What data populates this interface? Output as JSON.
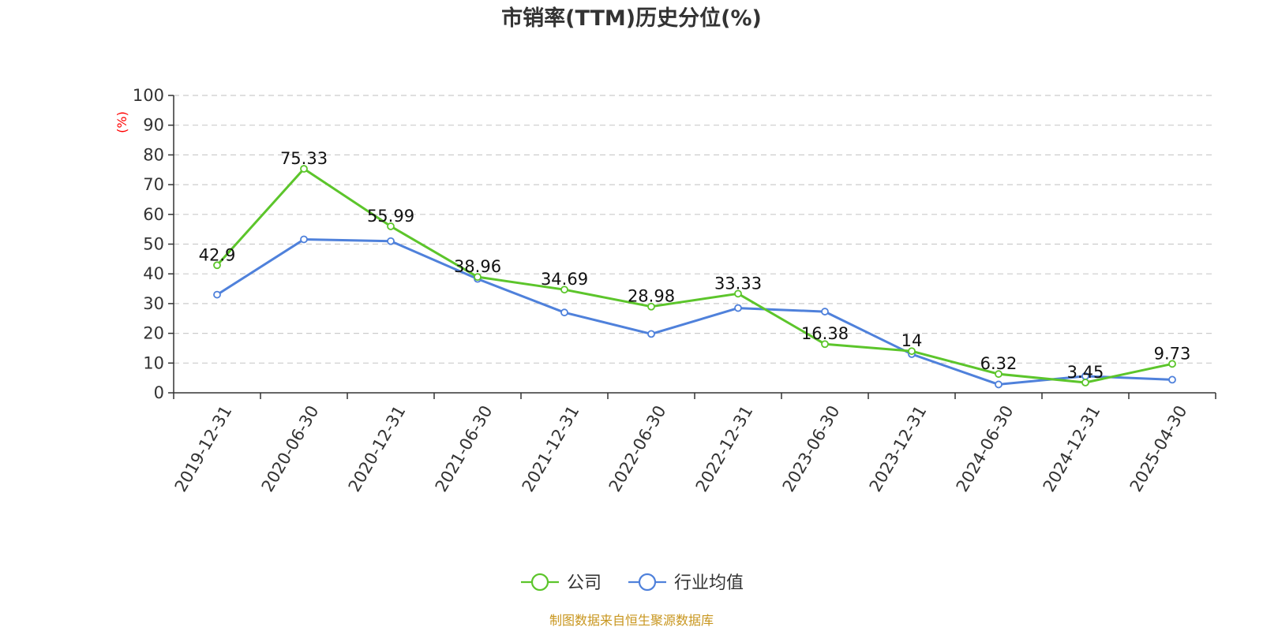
{
  "chart_data": {
    "type": "line",
    "title": "市销率(TTM)历史分位(%)",
    "ylabel": "(%)",
    "xlabel": "",
    "ylim": [
      0,
      100
    ],
    "yticks": [
      0,
      10,
      20,
      30,
      40,
      50,
      60,
      70,
      80,
      90,
      100
    ],
    "grid": true,
    "legend_position": "bottom",
    "categories": [
      "2019-12-31",
      "2020-06-30",
      "2020-12-31",
      "2021-06-30",
      "2021-12-31",
      "2022-06-30",
      "2022-12-31",
      "2023-06-30",
      "2023-12-31",
      "2024-06-30",
      "2024-12-31",
      "2025-04-30"
    ],
    "series": [
      {
        "name": "公司",
        "color": "#5cc52b",
        "values": [
          42.9,
          75.33,
          55.99,
          38.96,
          34.69,
          28.98,
          33.33,
          16.38,
          14,
          6.32,
          3.45,
          9.73
        ],
        "labels": [
          "42.9",
          "75.33",
          "55.99",
          "38.96",
          "34.69",
          "28.98",
          "33.33",
          "16.38",
          "14",
          "6.32",
          "3.45",
          "9.73"
        ]
      },
      {
        "name": "行业均值",
        "color": "#4f81db",
        "values": [
          33,
          51.6,
          51,
          38.3,
          27,
          19.8,
          28.5,
          27.3,
          13,
          2.8,
          5.6,
          4.4
        ]
      }
    ],
    "source": "制图数据来自恒生聚源数据库"
  },
  "colors": {
    "ylabel": "#ff0000",
    "source": "#c8961e",
    "axis": "#333333",
    "grid": "#cccccc"
  }
}
